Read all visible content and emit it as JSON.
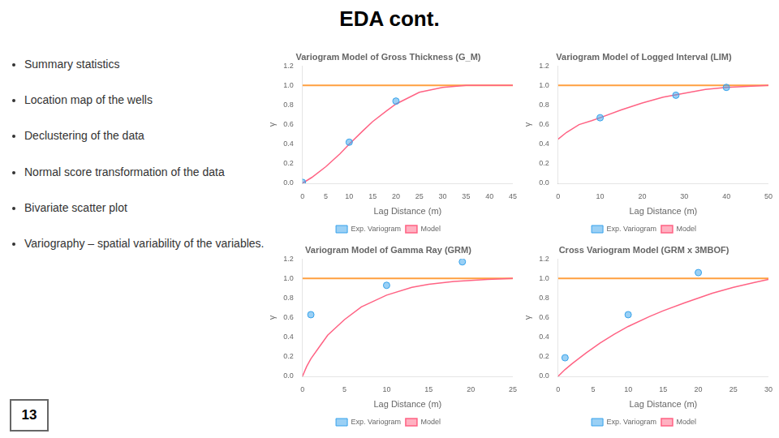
{
  "title": "EDA cont.",
  "annotations": [
    "Summary statistics",
    "Location map of the wells",
    "Declustering of the data",
    "Normal score transformation of the data",
    "Bivariate scatter plot",
    "Variography – spatial variability of the variables."
  ],
  "page_number": "13",
  "chart_data": [
    {
      "type": "scatter",
      "title": "Variogram Model of Gross Thickness (G_M)",
      "xlabel": "Lag Distance (m)",
      "ylabel": "γ",
      "xlim": [
        0,
        45
      ],
      "ylim": [
        0.0,
        1.2
      ],
      "xticks": [
        0,
        5,
        10,
        15,
        20,
        25,
        30,
        35,
        40,
        45
      ],
      "yticks": [
        {
          "value": 0,
          "label": "0.0"
        },
        0.2,
        0.4,
        0.6,
        0.8,
        {
          "value": 1,
          "label": "1.0"
        },
        1.2
      ],
      "grid": false,
      "legend": "bottom",
      "sill": 1.0,
      "series": [
        {
          "name": "Exp. Variogram",
          "type": "scatter",
          "x": [
            0,
            10,
            20
          ],
          "values": [
            0.01,
            0.42,
            0.84
          ]
        },
        {
          "name": "Model",
          "type": "line",
          "x": [
            0,
            2,
            5,
            8,
            10,
            13,
            15,
            18,
            20,
            25,
            30,
            35,
            40,
            45
          ],
          "values": [
            0.0,
            0.06,
            0.17,
            0.3,
            0.4,
            0.54,
            0.63,
            0.74,
            0.81,
            0.93,
            0.98,
            1.0,
            1.0,
            1.0
          ]
        }
      ]
    },
    {
      "type": "scatter",
      "title": "Variogram Model of Logged Interval (LIM)",
      "xlabel": "Lag Distance (m)",
      "ylabel": "γ",
      "xlim": [
        0,
        50
      ],
      "ylim": [
        0.0,
        1.2
      ],
      "xticks": [
        0,
        10,
        20,
        30,
        40,
        50
      ],
      "yticks": [
        {
          "value": 0,
          "label": "0.0"
        },
        0.2,
        0.4,
        0.6,
        0.8,
        {
          "value": 1,
          "label": "1.0"
        },
        1.2
      ],
      "grid": false,
      "legend": "bottom",
      "sill": 1.0,
      "series": [
        {
          "name": "Exp. Variogram",
          "type": "scatter",
          "x": [
            10,
            28,
            40
          ],
          "values": [
            0.67,
            0.9,
            0.98
          ]
        },
        {
          "name": "Model",
          "type": "line",
          "x": [
            0,
            2,
            5,
            8,
            10,
            15,
            20,
            25,
            30,
            35,
            40,
            45,
            50
          ],
          "values": [
            0.45,
            0.52,
            0.6,
            0.64,
            0.67,
            0.75,
            0.82,
            0.88,
            0.92,
            0.96,
            0.98,
            0.99,
            1.0
          ]
        }
      ]
    },
    {
      "type": "scatter",
      "title": "Variogram Model of Gamma Ray (GRM)",
      "xlabel": "Lag Distance (m)",
      "ylabel": "γ",
      "xlim": [
        0,
        25
      ],
      "ylim": [
        0.0,
        1.2
      ],
      "xticks": [
        0,
        5,
        10,
        15,
        20,
        25
      ],
      "yticks": [
        {
          "value": 0,
          "label": "0.0"
        },
        0.2,
        0.4,
        0.6,
        0.8,
        {
          "value": 1,
          "label": "1.0"
        },
        1.2
      ],
      "grid": false,
      "legend": "bottom",
      "sill": 1.0,
      "series": [
        {
          "name": "Exp. Variogram",
          "type": "scatter",
          "x": [
            1,
            10,
            19
          ],
          "values": [
            0.63,
            0.93,
            1.17
          ]
        },
        {
          "name": "Model",
          "type": "line",
          "x": [
            0,
            0.5,
            1,
            2,
            3,
            5,
            7,
            10,
            13,
            15,
            18,
            20,
            22,
            25
          ],
          "values": [
            0.0,
            0.1,
            0.18,
            0.3,
            0.42,
            0.58,
            0.71,
            0.83,
            0.91,
            0.94,
            0.97,
            0.98,
            0.99,
            1.0
          ]
        }
      ]
    },
    {
      "type": "scatter",
      "title": "Cross Variogram Model (GRM x 3MBOF)",
      "xlabel": "Lag Distance (m)",
      "ylabel": "γ",
      "xlim": [
        0,
        30
      ],
      "ylim": [
        0.0,
        1.2
      ],
      "xticks": [
        0,
        5,
        10,
        15,
        20,
        25,
        30
      ],
      "yticks": [
        {
          "value": 0,
          "label": "0.0"
        },
        0.2,
        0.4,
        0.6,
        0.8,
        {
          "value": 1,
          "label": "1.0"
        },
        1.2
      ],
      "grid": false,
      "legend": "bottom",
      "sill": 1.0,
      "series": [
        {
          "name": "Exp. Variogram",
          "type": "scatter",
          "x": [
            1,
            10,
            20
          ],
          "values": [
            0.19,
            0.63,
            1.06
          ]
        },
        {
          "name": "Model",
          "type": "line",
          "x": [
            0,
            1,
            2,
            4,
            6,
            8,
            10,
            13,
            15,
            18,
            20,
            22,
            25,
            28,
            30
          ],
          "values": [
            0.0,
            0.07,
            0.13,
            0.24,
            0.34,
            0.43,
            0.51,
            0.61,
            0.67,
            0.75,
            0.8,
            0.85,
            0.91,
            0.96,
            0.99
          ]
        }
      ]
    }
  ]
}
